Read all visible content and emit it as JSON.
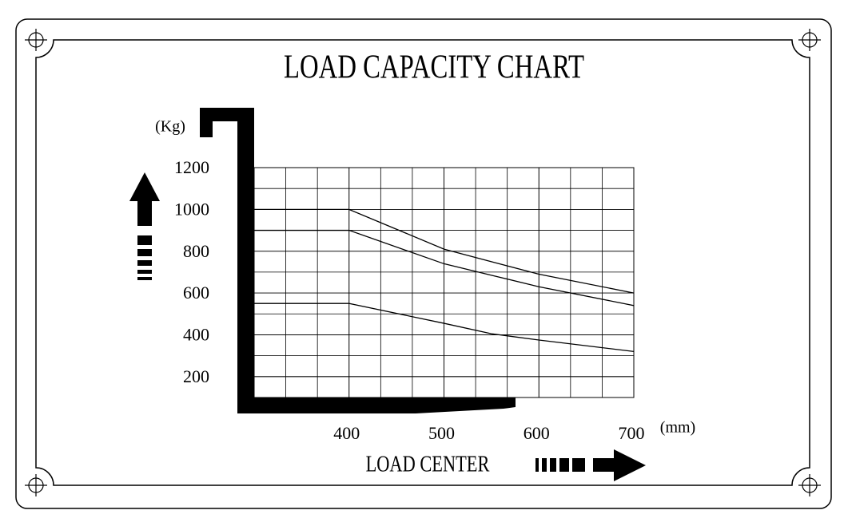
{
  "chart_data": {
    "type": "line",
    "title": "LOAD CAPACITY CHART",
    "y_label": "(Kg)",
    "x_label": "LOAD CENTER",
    "x_unit": "(mm)",
    "x": [
      300,
      400,
      500,
      550,
      600,
      700
    ],
    "series": [
      {
        "color": "#000000",
        "values": [
          1000,
          1000,
          810,
          750,
          690,
          600
        ]
      },
      {
        "color": "#000000",
        "values": [
          900,
          900,
          740,
          685,
          630,
          540
        ]
      },
      {
        "color": "#000000",
        "values": [
          550,
          550,
          455,
          405,
          375,
          320
        ]
      }
    ],
    "xlim": [
      300,
      700
    ],
    "xticks": [
      400,
      500,
      600,
      700
    ],
    "ylim": [
      100,
      1200
    ],
    "yticks": [
      200,
      400,
      600,
      800,
      1000,
      1200
    ],
    "grid": true
  }
}
